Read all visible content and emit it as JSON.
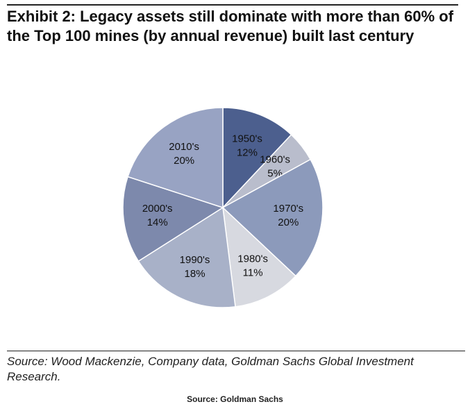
{
  "chart_data": {
    "type": "pie",
    "title": "Exhibit 2: Legacy assets still dominate with more than 60% of the Top 100 mines (by annual revenue) built last century",
    "categories": [
      "1950's",
      "1960's",
      "1970's",
      "1980's",
      "1990's",
      "2000's",
      "2010's"
    ],
    "values": [
      12,
      5,
      20,
      11,
      18,
      14,
      20
    ],
    "value_labels": [
      "12%",
      "5%",
      "20%",
      "11%",
      "18%",
      "14%",
      "20%"
    ],
    "colors": [
      "#4c5f8e",
      "#b9bdcc",
      "#8c9abb",
      "#d7d9e0",
      "#a8b1c8",
      "#7d89ac",
      "#98a3c3"
    ],
    "note": "Source: Wood Mackenzie, Company data, Goldman Sachs Global Investment Research.",
    "footer": "Source: Goldman Sachs"
  }
}
